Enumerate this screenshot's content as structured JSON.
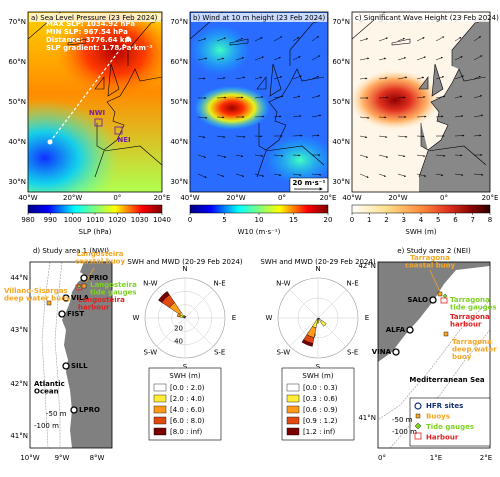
{
  "top_panels": [
    {
      "title": "a) Sea Level Pressure (23 Feb 2024)",
      "annotations": [
        "MAX SLP: 1034.92 hPa",
        "MIN SLP: 967.54 hPa",
        "Distance: 3776.64 km",
        "SLP gradient: 1.78 Pa·km⁻¹"
      ],
      "regions": [
        "NWI",
        "NEI"
      ],
      "lat_labels": [
        "70°N",
        "60°N",
        "50°N",
        "40°N",
        "30°N"
      ],
      "lon_labels": [
        "40°W",
        "20°W",
        "0°",
        "20°E"
      ],
      "colorbar_label": "SLP (hPa)",
      "colorbar_lim": [
        980,
        1040
      ],
      "colorbar_ticks": [
        980,
        990,
        1000,
        1010,
        1020,
        1030,
        1040
      ]
    },
    {
      "title": "b) Wind at 10 m height (23 Feb 2024)",
      "scale_label": "20 m·s⁻¹",
      "lat_labels": [
        "70°N",
        "60°N",
        "50°N",
        "40°N",
        "30°N"
      ],
      "lon_labels": [
        "40°W",
        "20°W",
        "0°",
        "20°E"
      ],
      "colorbar_label": "W10 (m·s⁻¹)",
      "colorbar_lim": [
        0,
        20
      ],
      "colorbar_ticks": [
        0,
        5,
        10,
        15,
        20
      ]
    },
    {
      "title": "c) Significant Wave Height (23 Feb 2024)",
      "lat_labels": [
        "70°N",
        "60°N",
        "50°N",
        "40°N",
        "30°N"
      ],
      "lon_labels": [
        "40°W",
        "20°W",
        "0°",
        "20°E"
      ],
      "colorbar_label": "SWH (m)",
      "colorbar_lim": [
        0,
        8
      ],
      "colorbar_ticks": [
        0,
        1,
        2,
        3,
        4,
        5,
        6,
        7,
        8
      ]
    }
  ],
  "study_areas": [
    {
      "title": "d) Study area 1 (NWI)",
      "lat_labels": [
        "44°N",
        "43°N",
        "42°N",
        "41°N"
      ],
      "lon_labels": [
        "10°W",
        "9°W",
        "8°W"
      ],
      "sites": [
        "PRIO",
        "VILA",
        "FIST",
        "SILL",
        "LPRO"
      ],
      "deep_buoy": [
        "Villano-Sisargas",
        "deep water buoy"
      ],
      "coastal_buoy": [
        "Langosteira",
        "coastal buoy"
      ],
      "tide_gauges": [
        "Langosteira",
        "tide gauges"
      ],
      "harbour": [
        "Langosteira",
        "harbour"
      ],
      "sea": [
        "Atlantic",
        "Ocean"
      ],
      "isobaths": [
        "-50 m",
        "-100 m"
      ]
    },
    {
      "title": "e) Study area 2 (NEI)",
      "lat_labels": [
        "42°N",
        "41°N"
      ],
      "lon_labels": [
        "0°",
        "1°E",
        "2°E"
      ],
      "sites": [
        "SALO",
        "ALFA",
        "VINA"
      ],
      "coastal_buoy": [
        "Tarragona",
        "coastal buoy"
      ],
      "tide_gauges": [
        "Tarragona",
        "tide gauges"
      ],
      "harbour": [
        "Tarragona",
        "harbour"
      ],
      "deep_buoy": [
        "Tarragona",
        "deep water",
        "buoy"
      ],
      "sea": "Mediterranean Sea",
      "isobaths": [
        "-50 m",
        "-100 m"
      ],
      "legend": [
        "HFR sites",
        "Buoys",
        "Tide gauges",
        "Harbour"
      ]
    }
  ],
  "roses": [
    {
      "title": "SWH and MWD (20-29 Feb 2024)",
      "rlim": [
        0,
        60
      ],
      "rticks": [
        20,
        40
      ],
      "directions": [
        "N",
        "N-E",
        "E",
        "S-E",
        "S",
        "S-W",
        "W",
        "N-W"
      ],
      "legend_title": "SWH (m)",
      "bins": [
        "[0.0 : 2.0)",
        "[2.0 : 4.0)",
        "[4.0 : 6.0)",
        "[6.0 : 8.0)",
        "[8.0 : inf)"
      ],
      "colors": [
        "#ffffff",
        "#ffee33",
        "#ff9a1a",
        "#e04a10",
        "#7a0000"
      ],
      "petals": [
        {
          "angle": 315,
          "values": [
            2,
            8,
            18,
            14,
            6
          ]
        },
        {
          "angle": 292.5,
          "values": [
            2,
            6,
            4
          ]
        },
        {
          "angle": 337.5,
          "values": [
            1,
            3
          ]
        },
        {
          "angle": 22.5,
          "values": [
            1,
            2
          ]
        }
      ]
    },
    {
      "title": "SWH and MWD (20-29 Feb 2024)",
      "rlim": [
        0,
        40
      ],
      "rticks": [
        20
      ],
      "directions": [
        "N",
        "N-E",
        "E",
        "S-E",
        "S",
        "S-W",
        "W",
        "N-W"
      ],
      "legend_title": "SWH (m)",
      "bins": [
        "[0.0 : 0.3)",
        "[0.3 : 0.6)",
        "[0.6 : 0.9)",
        "[0.9 : 1.2)",
        "[1.2 : inf)"
      ],
      "colors": [
        "#ffffff",
        "#ffee33",
        "#ff9a1a",
        "#e04a10",
        "#7a0000"
      ],
      "petals": [
        {
          "angle": 202.5,
          "values": [
            2,
            8,
            10,
            6,
            3
          ]
        },
        {
          "angle": 180,
          "values": [
            1,
            4
          ]
        },
        {
          "angle": 135,
          "values": [
            4,
            6
          ]
        },
        {
          "angle": 112.5,
          "values": [
            2
          ]
        }
      ]
    }
  ]
}
